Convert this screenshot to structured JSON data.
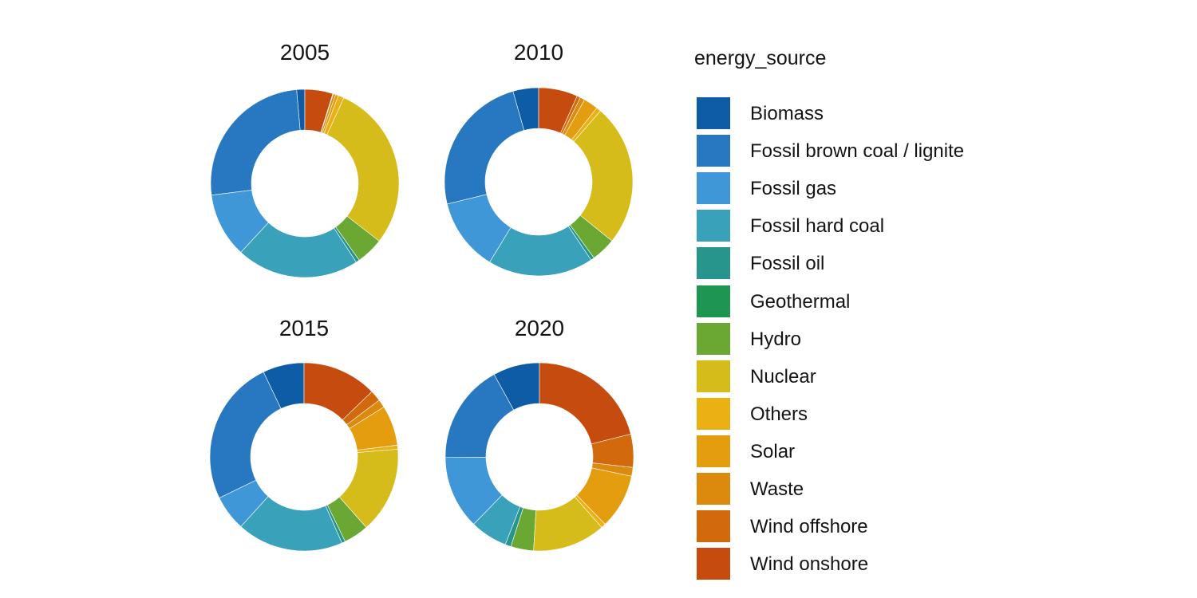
{
  "figure": {
    "kind": "faceted donut chart",
    "background_color": "#ffffff",
    "text_color": "#141414"
  },
  "legend": {
    "title": "energy_source",
    "entries": [
      {
        "label": "Biomass",
        "color": "#0e5ca6"
      },
      {
        "label": "Fossil brown coal / lignite",
        "color": "#2878c1"
      },
      {
        "label": "Fossil gas",
        "color": "#4097d8"
      },
      {
        "label": "Fossil hard coal",
        "color": "#3aa1bb"
      },
      {
        "label": "Fossil oil",
        "color": "#27958b"
      },
      {
        "label": "Geothermal",
        "color": "#1f9552"
      },
      {
        "label": "Hydro",
        "color": "#6aa733"
      },
      {
        "label": "Nuclear",
        "color": "#d5bc1b"
      },
      {
        "label": "Others",
        "color": "#ebb013"
      },
      {
        "label": "Solar",
        "color": "#e39d0f"
      },
      {
        "label": "Waste",
        "color": "#dc8a0e"
      },
      {
        "label": "Wind offshore",
        "color": "#d26a0d"
      },
      {
        "label": "Wind onshore",
        "color": "#c54b0e"
      }
    ]
  },
  "chart_data": {
    "type": "pie",
    "subtype": "donut",
    "values_are": "percent",
    "start_angle": "12 o'clock",
    "winding": "counterclockwise in category order",
    "inner_radius_ratio": 0.57,
    "categories": [
      "Biomass",
      "Fossil brown coal / lignite",
      "Fossil gas",
      "Fossil hard coal",
      "Fossil oil",
      "Geothermal",
      "Hydro",
      "Nuclear",
      "Others",
      "Solar",
      "Waste",
      "Wind offshore",
      "Wind onshore"
    ],
    "colors": [
      "#0e5ca6",
      "#2878c1",
      "#4097d8",
      "#3aa1bb",
      "#27958b",
      "#1f9552",
      "#6aa733",
      "#d5bc1b",
      "#ebb013",
      "#e39d0f",
      "#dc8a0e",
      "#d26a0d",
      "#c54b0e"
    ],
    "facets": [
      {
        "title": "2005",
        "values": [
          1.4,
          25.6,
          11.1,
          21.1,
          0.6,
          0.0,
          4.7,
          28.7,
          1.0,
          0.5,
          0.4,
          0.1,
          4.8
        ]
      },
      {
        "title": "2010",
        "values": [
          4.4,
          24.4,
          12.5,
          18.1,
          0.6,
          0.0,
          4.2,
          24.4,
          0.8,
          2.5,
          0.8,
          0.6,
          6.7
        ]
      },
      {
        "title": "2015",
        "values": [
          7.1,
          25.1,
          6.1,
          18.3,
          0.6,
          0.0,
          4.3,
          14.8,
          0.7,
          6.9,
          1.4,
          1.9,
          12.8
        ]
      },
      {
        "title": "2020",
        "values": [
          8.0,
          17.1,
          12.6,
          6.4,
          1.0,
          0.0,
          3.9,
          12.5,
          0.8,
          9.4,
          1.5,
          5.7,
          21.1
        ]
      }
    ]
  }
}
